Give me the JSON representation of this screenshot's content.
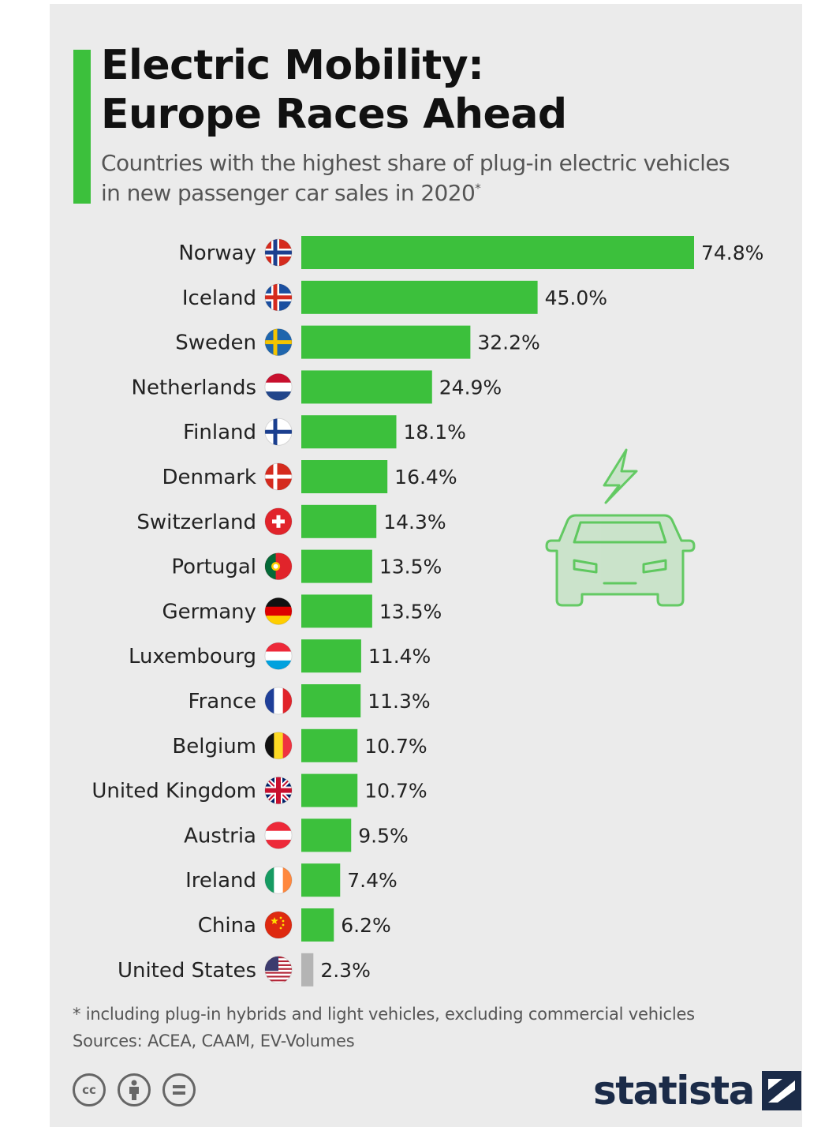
{
  "title_lines": [
    "Electric Mobility:",
    "Europe Races Ahead"
  ],
  "subtitle_lines": [
    "Countries with the highest share of plug-in electric vehicles",
    "in new passenger car sales in 2020"
  ],
  "subtitle_marker": "*",
  "footnote": "* including plug-in hybrids and light vehicles, excluding commercial vehicles",
  "sources": "Sources: ACEA, CAAM, EV-Volumes",
  "licence_icons": [
    "cc-icon",
    "attribution-person-icon",
    "no-derivatives-equals-icon"
  ],
  "licence_cc_text": "cc",
  "brand": "statista",
  "colors": {
    "accent": "#3cc03c",
    "bar": "#3cc03c",
    "bar_highlight_other": "#b4b4b4",
    "background": "#ebebeb"
  },
  "decorative_icon": "electric-car-lightning-icon",
  "chart_data": {
    "type": "bar",
    "orientation": "horizontal",
    "unit": "%",
    "xlim": [
      0,
      74.8
    ],
    "grid": false,
    "categories": [
      "Norway",
      "Iceland",
      "Sweden",
      "Netherlands",
      "Finland",
      "Denmark",
      "Switzerland",
      "Portugal",
      "Germany",
      "Luxembourg",
      "France",
      "Belgium",
      "United Kingdom",
      "Austria",
      "Ireland",
      "China",
      "United States"
    ],
    "values": [
      74.8,
      45.0,
      32.2,
      24.9,
      18.1,
      16.4,
      14.3,
      13.5,
      13.5,
      11.4,
      11.3,
      10.7,
      10.7,
      9.5,
      7.4,
      6.2,
      2.3
    ],
    "value_labels": [
      "74.8%",
      "45.0%",
      "32.2%",
      "24.9%",
      "18.1%",
      "16.4%",
      "14.3%",
      "13.5%",
      "13.5%",
      "11.4%",
      "11.3%",
      "10.7%",
      "10.7%",
      "9.5%",
      "7.4%",
      "6.2%",
      "2.3%"
    ],
    "flag_icons": [
      "norway-flag-icon",
      "iceland-flag-icon",
      "sweden-flag-icon",
      "netherlands-flag-icon",
      "finland-flag-icon",
      "denmark-flag-icon",
      "switzerland-flag-icon",
      "portugal-flag-icon",
      "germany-flag-icon",
      "luxembourg-flag-icon",
      "france-flag-icon",
      "belgium-flag-icon",
      "uk-flag-icon",
      "austria-flag-icon",
      "ireland-flag-icon",
      "china-flag-icon",
      "usa-flag-icon"
    ],
    "bar_colors": [
      "#3cc03c",
      "#3cc03c",
      "#3cc03c",
      "#3cc03c",
      "#3cc03c",
      "#3cc03c",
      "#3cc03c",
      "#3cc03c",
      "#3cc03c",
      "#3cc03c",
      "#3cc03c",
      "#3cc03c",
      "#3cc03c",
      "#3cc03c",
      "#3cc03c",
      "#3cc03c",
      "#b4b4b4"
    ]
  }
}
